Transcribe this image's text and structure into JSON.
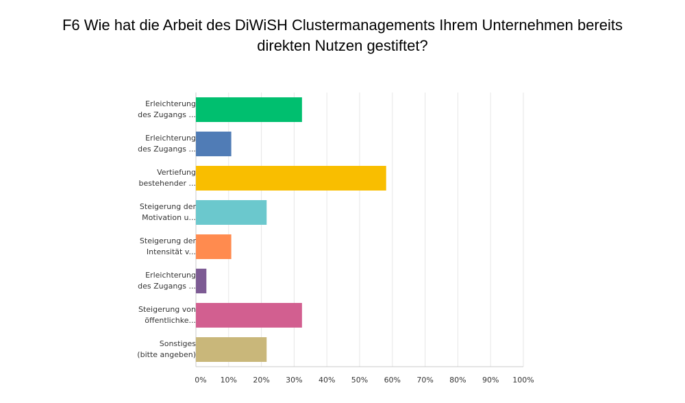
{
  "title": {
    "line1": "F6 Wie hat die Arbeit des DiWiSH Clustermanagements Ihrem Unternehmen bereits",
    "line2": "direkten Nutzen gestiftet?"
  },
  "chart_data": {
    "type": "bar",
    "orientation": "horizontal",
    "categories": [
      [
        "Erleichterung",
        "des Zugangs ..."
      ],
      [
        "Erleichterung",
        "des Zugangs ..."
      ],
      [
        "Vertiefung",
        "bestehender ..."
      ],
      [
        "Steigerung der",
        "Motivation u..."
      ],
      [
        "Steigerung der",
        "Intensität v..."
      ],
      [
        "Erleichterung",
        "des Zugangs ..."
      ],
      [
        "Steigerung von",
        "öffentlichke..."
      ],
      [
        "Sonstiges",
        "(bitte angeben)"
      ]
    ],
    "values": [
      32.4,
      10.8,
      58.1,
      21.6,
      10.8,
      3.2,
      32.4,
      21.6
    ],
    "colors": [
      "#00bf6f",
      "#507cb6",
      "#f9be00",
      "#6bc8cd",
      "#ff8b4f",
      "#7d5b94",
      "#d25f90",
      "#c9b77a"
    ],
    "xlim": [
      0,
      100
    ],
    "xticks": [
      "0%",
      "10%",
      "20%",
      "30%",
      "40%",
      "50%",
      "60%",
      "70%",
      "80%",
      "90%",
      "100%"
    ],
    "grid": true,
    "legend": "none"
  }
}
